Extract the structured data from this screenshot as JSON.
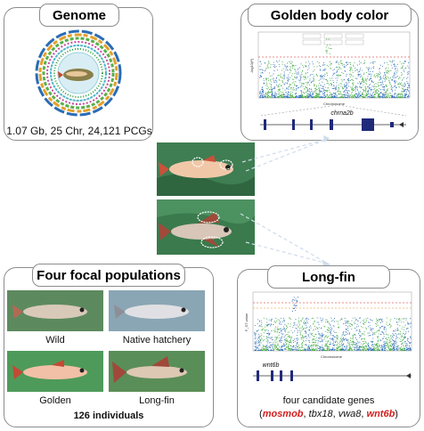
{
  "genome": {
    "title": "Genome",
    "summary": "1.07 Gb, 25 Chr, 24,121 PCGs"
  },
  "golden_body": {
    "title": "Golden body color",
    "gene": "chrna2b",
    "xaxis": "Chromosome",
    "yaxis": "-log10(P)",
    "candidate_boxes": [
      "CL1_N.004",
      "CL1_N.0022",
      "CL1_N.0013",
      "CL1_N.0004",
      "CL1_N.0011",
      "CL1_N.0027"
    ]
  },
  "long_fin": {
    "title": "Long-fin",
    "gene": "wnt6b",
    "xaxis": "Chromosome",
    "yaxis": "F_ST value",
    "candidates_label": "four candidate genes",
    "genes": [
      {
        "name": "mosmob",
        "highlight": true
      },
      {
        "name": "tbx18",
        "highlight": false
      },
      {
        "name": "vwa8",
        "highlight": false
      },
      {
        "name": "wnt6b",
        "highlight": true
      }
    ]
  },
  "populations": {
    "title": "Four focal populations",
    "groups": [
      "Wild",
      "Native hatchery",
      "Golden",
      "Long-fin"
    ],
    "count": "126 individuals"
  },
  "colors": {
    "blue": "#2a6cb5",
    "green": "#3aa83a",
    "red": "#d11f1f",
    "navy": "#1f2a7a"
  }
}
